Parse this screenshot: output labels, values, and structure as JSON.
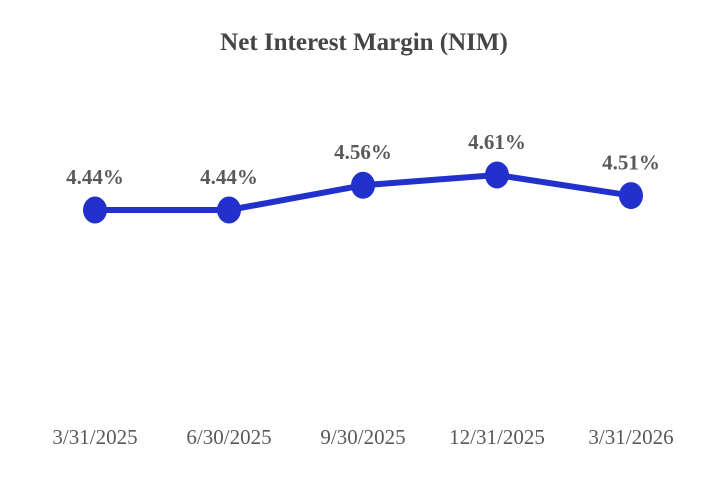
{
  "chart_data": {
    "type": "line",
    "title": "Net Interest Margin (NIM)",
    "series": [
      {
        "name": "Net Interest Margin",
        "values": [
          4.44,
          4.44,
          4.56,
          4.61,
          4.51
        ]
      }
    ],
    "categories": [
      "3/31/2025",
      "6/30/2025",
      "9/30/2025",
      "12/31/2025",
      "3/31/2026"
    ],
    "data_labels": [
      "4.44%",
      "4.44%",
      "4.56%",
      "4.61%",
      "4.51%"
    ],
    "xlabel": "",
    "ylabel": "",
    "ylim_visible": false,
    "grid": false,
    "axes_visible": false,
    "legend_position": "none",
    "colors": {
      "line": "#2231CB",
      "marker": "#2231CB",
      "title_text": "#454545",
      "data_label_text": "#595959",
      "axis_label_text": "#595959",
      "background": "#FFFFFF"
    }
  }
}
